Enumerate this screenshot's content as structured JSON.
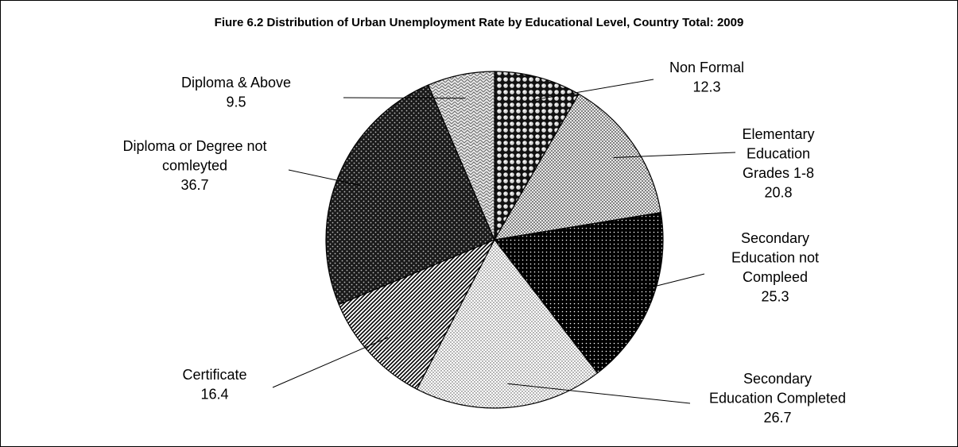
{
  "chart_data": {
    "type": "pie",
    "title": "Fiure 6.2  Distribution of Urban Unemployment Rate by Educational Level, Country Total: 2009",
    "slices": [
      {
        "label": "Non Formal",
        "value": 12.3,
        "pattern": "spheres"
      },
      {
        "label": "Elementary Education Grades 1-8",
        "value": 20.8,
        "pattern": "grid"
      },
      {
        "label": "Secondary Education not Compleed",
        "value": 25.3,
        "pattern": "dark-dots"
      },
      {
        "label": "Secondary Education Completed",
        "value": 26.7,
        "pattern": "fine-dots"
      },
      {
        "label": "Certificate",
        "value": 16.4,
        "pattern": "diagonal"
      },
      {
        "label": "Diploma or Degree not comleyted",
        "value": 36.7,
        "pattern": "dark-speckle"
      },
      {
        "label": "Diploma & Above",
        "value": 9.5,
        "pattern": "weave"
      }
    ],
    "label_lines": [
      [
        "Non Formal",
        "12.3"
      ],
      [
        "Elementary",
        "Education",
        "Grades 1-8",
        "20.8"
      ],
      [
        "Secondary",
        "Education not",
        "Compleed",
        "25.3"
      ],
      [
        "Secondary",
        "Education Completed",
        "26.7"
      ],
      [
        "Certificate",
        "16.4"
      ],
      [
        "Diploma or Degree not",
        "comleyted",
        "36.7"
      ],
      [
        "Diploma & Above",
        "9.5"
      ]
    ],
    "start_angle": "12 o'clock",
    "direction": "clockwise",
    "legend": "none"
  }
}
